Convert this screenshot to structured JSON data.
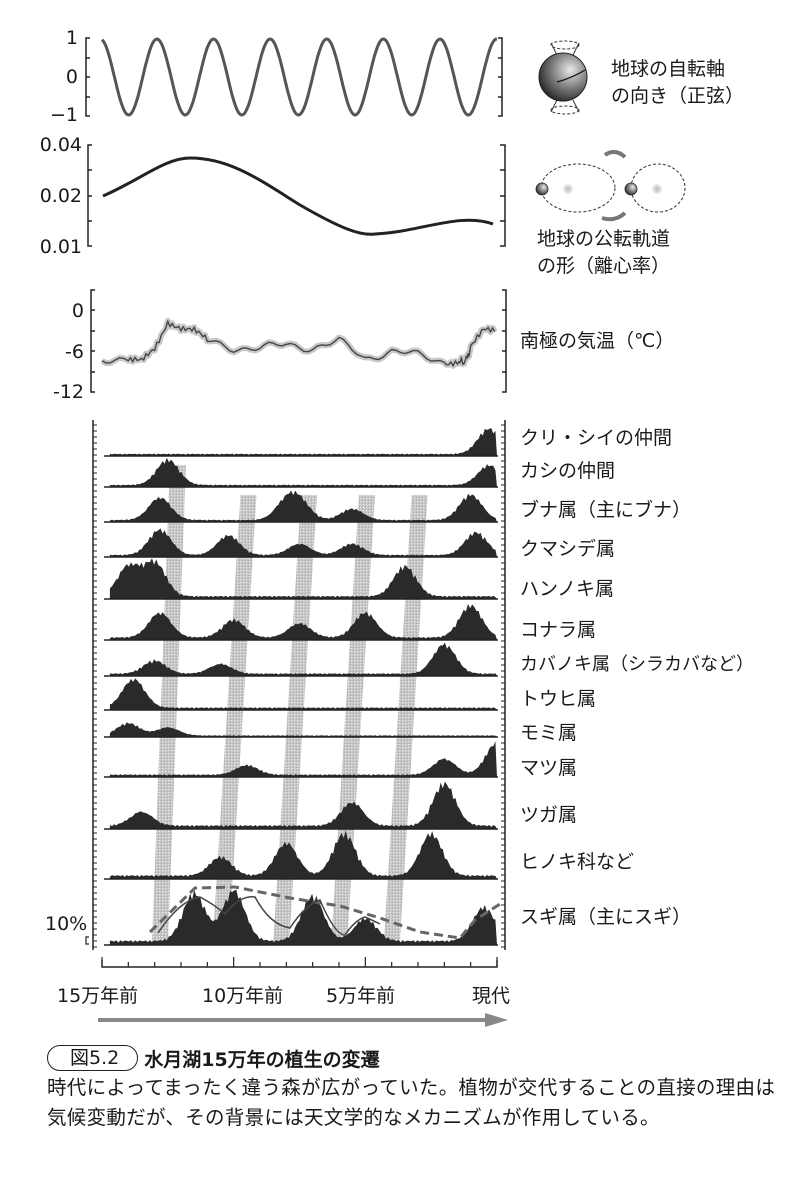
{
  "panels": {
    "axial": {
      "label_line1": "地球の自転軸",
      "label_line2": "の向き（正弦）",
      "ticks": [
        "1",
        "0",
        "−1"
      ],
      "icon": "earth-tilt-icon"
    },
    "eccentricity": {
      "label_line1": "地球の公転軌道",
      "label_line2": "の形（離心率）",
      "ticks": [
        "0.04",
        "0.02",
        "0.01"
      ],
      "icon": "orbit-icon"
    },
    "temperature": {
      "label": "南極の気温（℃）",
      "ticks": [
        "0",
        "-6",
        "-12"
      ]
    },
    "pollen": {
      "scale_label": "10%",
      "taxa": [
        "クリ・シイの仲間",
        "カシの仲間",
        "ブナ属（主にブナ）",
        "クマシデ属",
        "ハンノキ属",
        "コナラ属",
        "カバノキ属（シラカバなど）",
        "トウヒ属",
        "モミ属",
        "マツ属",
        "ツガ属",
        "ヒノキ科など",
        "スギ属（主にスギ）"
      ]
    }
  },
  "x_axis": {
    "labels": [
      "15万年前",
      "10万年前",
      "5万年前",
      "現代"
    ],
    "arrow_icon": "time-arrow-icon"
  },
  "caption": {
    "figure_number": "図5.2",
    "title": "水月湖15万年の植生の変遷",
    "body": "時代によってまったく違う森が広がっていた。植物が交代することの直接の理由は気候変動だが、その背景には天文学的なメカニズムが作用している。"
  },
  "chart_data": [
    {
      "type": "line",
      "title": "地球の自転軸の向き（正弦）",
      "ylabel": "",
      "ylim": [
        -1,
        1
      ],
      "yticks": [
        1,
        0,
        -1
      ],
      "x": [
        -150,
        -140,
        -130,
        -120,
        -110,
        -100,
        -90,
        -80,
        -70,
        -60,
        -50,
        -40,
        -30,
        -20,
        -10,
        0
      ],
      "description": "sinusoid with ~7 full cycles over 150k years (~21–23 kyr precession)",
      "period_kyr": 21.5
    },
    {
      "type": "line",
      "title": "地球の公転軌道の形（離心率）",
      "ylim": [
        0.01,
        0.04
      ],
      "yticks": [
        0.04,
        0.02,
        0.01
      ],
      "x": [
        -150,
        -125,
        -100,
        -75,
        -50,
        -25,
        0
      ],
      "values": [
        0.02,
        0.031,
        0.034,
        0.028,
        0.018,
        0.012,
        0.014
      ]
    },
    {
      "type": "line",
      "title": "南極の気温（℃）",
      "ylim": [
        -12,
        3
      ],
      "yticks": [
        0,
        -6,
        -12
      ],
      "x": [
        -150,
        -140,
        -135,
        -130,
        -125,
        -120,
        -115,
        -110,
        -100,
        -90,
        -80,
        -70,
        -60,
        -50,
        -40,
        -30,
        -20,
        -15,
        -12,
        -10,
        -5,
        0
      ],
      "values": [
        -8,
        -9,
        -9,
        -5,
        3,
        1,
        0,
        -3,
        -5,
        -5,
        -4,
        -5,
        -3,
        -8,
        -6,
        -7,
        -9,
        -9,
        -9,
        -5,
        0,
        0
      ]
    },
    {
      "type": "area",
      "title": "水月湖の花粉組成",
      "xlabel": "",
      "x_labels": [
        "15万年前",
        "10万年前",
        "5万年前",
        "現代"
      ],
      "scale": "10%",
      "series": [
        {
          "name": "クリ・シイの仲間",
          "peaks": [
            {
              "x": -3,
              "h": 0.9
            }
          ]
        },
        {
          "name": "カシの仲間",
          "peaks": [
            {
              "x": -125,
              "h": 0.9
            },
            {
              "x": -3,
              "h": 0.7
            }
          ]
        },
        {
          "name": "ブナ属（主にブナ）",
          "peaks": [
            {
              "x": -128,
              "h": 0.8
            },
            {
              "x": -80,
              "h": 0.6
            },
            {
              "x": -75,
              "h": 0.6
            },
            {
              "x": -55,
              "h": 0.4
            },
            {
              "x": -10,
              "h": 0.9
            }
          ]
        },
        {
          "name": "クマシデ属",
          "peaks": [
            {
              "x": -128,
              "h": 0.9
            },
            {
              "x": -102,
              "h": 0.7
            },
            {
              "x": -75,
              "h": 0.4
            },
            {
              "x": -55,
              "h": 0.4
            },
            {
              "x": -8,
              "h": 0.8
            }
          ]
        },
        {
          "name": "ハンノキ属",
          "peaks": [
            {
              "x": -140,
              "h": 0.8
            },
            {
              "x": -130,
              "h": 0.9
            },
            {
              "x": -35,
              "h": 0.8
            }
          ]
        },
        {
          "name": "コナラ属",
          "peaks": [
            {
              "x": -128,
              "h": 0.7
            },
            {
              "x": -100,
              "h": 0.5
            },
            {
              "x": -75,
              "h": 0.4
            },
            {
              "x": -50,
              "h": 0.7
            },
            {
              "x": -10,
              "h": 0.9
            }
          ]
        },
        {
          "name": "カバノキ属（シラカバなど）",
          "peaks": [
            {
              "x": -130,
              "h": 0.4
            },
            {
              "x": -105,
              "h": 0.3
            },
            {
              "x": -20,
              "h": 0.9
            }
          ]
        },
        {
          "name": "トウヒ属",
          "peaks": [
            {
              "x": -138,
              "h": 0.9
            }
          ]
        },
        {
          "name": "モミ属",
          "peaks": [
            {
              "x": -140,
              "h": 0.6
            },
            {
              "x": -125,
              "h": 0.4
            }
          ]
        },
        {
          "name": "マツ属",
          "peaks": [
            {
              "x": -95,
              "h": 0.3
            },
            {
              "x": -20,
              "h": 0.5
            },
            {
              "x": 0,
              "h": 1.0
            }
          ]
        },
        {
          "name": "ツガ属",
          "peaks": [
            {
              "x": -135,
              "h": 0.3
            },
            {
              "x": -55,
              "h": 0.5
            },
            {
              "x": -20,
              "h": 0.9
            }
          ]
        },
        {
          "name": "ヒノキ科など",
          "peaks": [
            {
              "x": -105,
              "h": 0.4
            },
            {
              "x": -80,
              "h": 0.7
            },
            {
              "x": -58,
              "h": 0.9
            },
            {
              "x": -25,
              "h": 0.9
            }
          ]
        },
        {
          "name": "スギ属（主にスギ）",
          "peaks": [
            {
              "x": -115,
              "h": 0.85
            },
            {
              "x": -100,
              "h": 0.9
            },
            {
              "x": -70,
              "h": 0.8
            },
            {
              "x": -50,
              "h": 0.4
            },
            {
              "x": -5,
              "h": 0.6
            }
          ]
        }
      ],
      "interglacial_bands_kyr": [
        -128,
        -105,
        -82,
        -60,
        -40
      ]
    }
  ]
}
